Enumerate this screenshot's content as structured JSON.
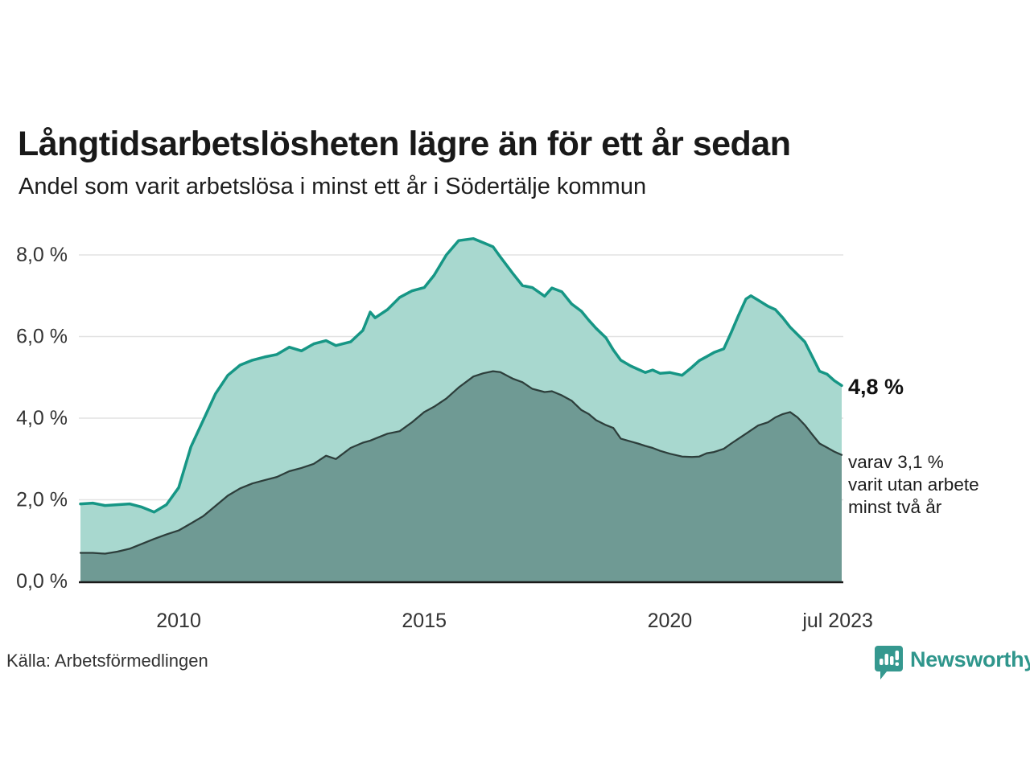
{
  "header": {
    "title": "Långtidsarbetslösheten lägre än för ett år sedan",
    "subtitle": "Andel som varit arbetslösa i minst ett år i Södertälje kommun"
  },
  "chart_data": {
    "type": "area",
    "title": "Långtidsarbetslösheten lägre än för ett år sedan",
    "subtitle": "Andel som varit arbetslösa i minst ett år i Södertälje kommun",
    "xlabel": "",
    "ylabel": "",
    "xlim": [
      2008.0,
      2023.5
    ],
    "ylim": [
      0,
      8.8
    ],
    "grid": true,
    "grid_color": "#e2e2e2",
    "axis_color": "#1a1a1a",
    "background": "#ffffff",
    "x": [
      2008.0,
      2008.25,
      2008.5,
      2008.75,
      2009.0,
      2009.25,
      2009.5,
      2009.75,
      2010.0,
      2010.25,
      2010.5,
      2010.75,
      2011.0,
      2011.25,
      2011.5,
      2011.75,
      2012.0,
      2012.25,
      2012.5,
      2012.75,
      2013.0,
      2013.2,
      2013.5,
      2013.75,
      2013.9,
      2014.0,
      2014.25,
      2014.5,
      2014.75,
      2015.0,
      2015.2,
      2015.45,
      2015.7,
      2016.0,
      2016.2,
      2016.4,
      2016.55,
      2016.8,
      2017.0,
      2017.2,
      2017.45,
      2017.6,
      2017.8,
      2018.0,
      2018.2,
      2018.35,
      2018.5,
      2018.7,
      2018.85,
      2019.0,
      2019.2,
      2019.35,
      2019.5,
      2019.65,
      2019.8,
      2020.0,
      2020.25,
      2020.45,
      2020.6,
      2020.75,
      2020.9,
      2021.1,
      2021.25,
      2021.4,
      2021.55,
      2021.65,
      2021.8,
      2022.0,
      2022.15,
      2022.3,
      2022.45,
      2022.6,
      2022.75,
      2022.9,
      2023.05,
      2023.2,
      2023.35,
      2023.5
    ],
    "series": [
      {
        "name": "Andel som varit arbetslösa minst ett år",
        "line_color": "#169685",
        "fill_color": "#a8d8cf",
        "line_width": 3.5,
        "values": [
          1.9,
          1.92,
          1.86,
          1.88,
          1.9,
          1.82,
          1.7,
          1.88,
          2.3,
          3.3,
          3.95,
          4.6,
          5.05,
          5.3,
          5.42,
          5.5,
          5.56,
          5.74,
          5.65,
          5.82,
          5.9,
          5.78,
          5.87,
          6.15,
          6.6,
          6.46,
          6.66,
          6.96,
          7.12,
          7.2,
          7.5,
          8.0,
          8.35,
          8.4,
          8.3,
          8.2,
          7.95,
          7.55,
          7.25,
          7.2,
          6.99,
          7.19,
          7.1,
          6.8,
          6.62,
          6.4,
          6.2,
          5.97,
          5.67,
          5.42,
          5.28,
          5.2,
          5.12,
          5.18,
          5.1,
          5.12,
          5.05,
          5.25,
          5.41,
          5.51,
          5.61,
          5.7,
          6.1,
          6.52,
          6.92,
          7.0,
          6.89,
          6.74,
          6.66,
          6.46,
          6.23,
          6.05,
          5.87,
          5.51,
          5.15,
          5.08,
          4.92,
          4.8
        ]
      },
      {
        "name": "varav arbetslösa minst två år",
        "line_color": "#2d3e3b",
        "fill_color": "#6f9a94",
        "line_width": 2.25,
        "values": [
          0.7,
          0.7,
          0.68,
          0.73,
          0.8,
          0.92,
          1.04,
          1.15,
          1.25,
          1.42,
          1.6,
          1.85,
          2.1,
          2.28,
          2.4,
          2.48,
          2.56,
          2.7,
          2.78,
          2.88,
          3.08,
          3.0,
          3.27,
          3.4,
          3.45,
          3.5,
          3.62,
          3.68,
          3.9,
          4.15,
          4.28,
          4.48,
          4.75,
          5.02,
          5.1,
          5.15,
          5.13,
          4.97,
          4.88,
          4.72,
          4.64,
          4.66,
          4.56,
          4.43,
          4.2,
          4.1,
          3.95,
          3.83,
          3.76,
          3.5,
          3.43,
          3.38,
          3.32,
          3.27,
          3.2,
          3.13,
          3.06,
          3.05,
          3.06,
          3.14,
          3.17,
          3.25,
          3.38,
          3.5,
          3.62,
          3.7,
          3.82,
          3.9,
          4.02,
          4.1,
          4.15,
          4.02,
          3.83,
          3.6,
          3.38,
          3.28,
          3.18,
          3.1
        ]
      }
    ],
    "yticks": [
      {
        "value": 8,
        "label": "8,0 %"
      },
      {
        "value": 6,
        "label": "6,0 %"
      },
      {
        "value": 4,
        "label": "4,0 %"
      },
      {
        "value": 2,
        "label": "2,0 %"
      },
      {
        "value": 0,
        "label": "0,0 %"
      }
    ],
    "xticks": [
      {
        "value": 2010,
        "label": "2010"
      },
      {
        "value": 2015,
        "label": "2015"
      },
      {
        "value": 2020,
        "label": "2020"
      },
      {
        "value": 2023.42,
        "label": "jul 2023"
      }
    ],
    "legend_position": "none"
  },
  "annotations": {
    "end_value_primary": "4,8 %",
    "secondary_lines": [
      "varav 3,1 %",
      "varit utan arbete",
      "minst två år"
    ]
  },
  "footer": {
    "source": "Källa: Arbetsförmedlingen",
    "brand": "Newsworthy",
    "brand_color": "#2f968c",
    "logo_icon": "bar-chart-speech-bubble"
  }
}
